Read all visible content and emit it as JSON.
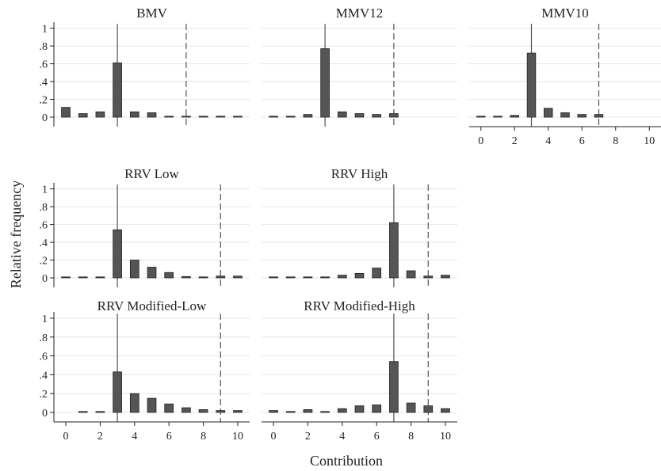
{
  "figure": {
    "ylabel": "Relative frequency",
    "xlabel": "Contribution",
    "colors": {
      "bar": "#555555",
      "bar_edge": "#222222",
      "grid": "#e6e6e6",
      "axis": "#222222",
      "marker_line": "#555555"
    }
  },
  "chart_data": [
    {
      "type": "bar",
      "title": "BMV",
      "x": [
        0,
        1,
        2,
        3,
        4,
        5,
        6,
        7,
        8,
        9,
        10
      ],
      "values": [
        0.11,
        0.04,
        0.06,
        0.61,
        0.06,
        0.05,
        0.01,
        0.01,
        0.005,
        0.002,
        0.002
      ],
      "solid_line_x": 3,
      "dashed_line_x": 7,
      "xlim": [
        -0.6,
        10.6
      ],
      "ylim": [
        0,
        1.05
      ],
      "yticks": [
        "0",
        ".2",
        ".4",
        ".6",
        ".8",
        "1"
      ],
      "xticks": [],
      "grid": true
    },
    {
      "type": "bar",
      "title": "MMV12",
      "x": [
        0,
        1,
        2,
        3,
        4,
        5,
        6,
        7,
        8,
        9,
        10
      ],
      "values": [
        0.003,
        0.005,
        0.03,
        0.77,
        0.06,
        0.04,
        0.03,
        0.04,
        0,
        0,
        0
      ],
      "solid_line_x": 3,
      "dashed_line_x": 7,
      "xlim": [
        -0.6,
        10.6
      ],
      "ylim": [
        0,
        1.05
      ],
      "yticks": [],
      "xticks": [],
      "grid": true
    },
    {
      "type": "bar",
      "title": "MMV10",
      "x": [
        0,
        1,
        2,
        3,
        4,
        5,
        6,
        7,
        8,
        9,
        10
      ],
      "values": [
        0.005,
        0.005,
        0.02,
        0.72,
        0.1,
        0.05,
        0.03,
        0.03,
        0,
        0,
        0
      ],
      "solid_line_x": 3,
      "dashed_line_x": 7,
      "xlim": [
        -0.6,
        10.6
      ],
      "ylim": [
        0,
        1.05
      ],
      "yticks": [],
      "xticks": [
        "0",
        "2",
        "4",
        "6",
        "8",
        "10"
      ],
      "grid": true
    },
    {
      "type": "bar",
      "title": "RRV Low",
      "x": [
        0,
        1,
        2,
        3,
        4,
        5,
        6,
        7,
        8,
        9,
        10
      ],
      "values": [
        0.003,
        0.003,
        0.005,
        0.54,
        0.2,
        0.12,
        0.06,
        0.015,
        0.01,
        0.02,
        0.02
      ],
      "solid_line_x": 3,
      "dashed_line_x": 9,
      "xlim": [
        -0.6,
        10.6
      ],
      "ylim": [
        0,
        1.05
      ],
      "yticks": [
        "0",
        ".2",
        ".4",
        ".6",
        ".8",
        "1"
      ],
      "xticks": [],
      "grid": true
    },
    {
      "type": "bar",
      "title": "RRV High",
      "x": [
        0,
        1,
        2,
        3,
        4,
        5,
        6,
        7,
        8,
        9,
        10
      ],
      "values": [
        0.01,
        0.01,
        0.005,
        0.01,
        0.03,
        0.05,
        0.11,
        0.62,
        0.08,
        0.02,
        0.03
      ],
      "solid_line_x": 7,
      "dashed_line_x": 9,
      "xlim": [
        -0.6,
        10.6
      ],
      "ylim": [
        0,
        1.05
      ],
      "yticks": [],
      "xticks": [],
      "grid": true
    },
    {
      "type": "bar",
      "title": "RRV Modified-Low",
      "x": [
        0,
        1,
        2,
        3,
        4,
        5,
        6,
        7,
        8,
        9,
        10
      ],
      "values": [
        0,
        0.003,
        0.01,
        0.43,
        0.2,
        0.15,
        0.09,
        0.05,
        0.03,
        0.02,
        0.02
      ],
      "solid_line_x": 3,
      "dashed_line_x": 9,
      "xlim": [
        -0.6,
        10.6
      ],
      "ylim": [
        0,
        1.05
      ],
      "yticks": [
        "0",
        ".2",
        ".4",
        ".6",
        ".8",
        "1"
      ],
      "xticks": [
        "0",
        "2",
        "4",
        "6",
        "8",
        "10"
      ],
      "grid": true
    },
    {
      "type": "bar",
      "title": "RRV Modified-High",
      "x": [
        0,
        1,
        2,
        3,
        4,
        5,
        6,
        7,
        8,
        9,
        10
      ],
      "values": [
        0.02,
        0.01,
        0.03,
        0.01,
        0.04,
        0.07,
        0.08,
        0.54,
        0.1,
        0.07,
        0.04
      ],
      "solid_line_x": 7,
      "dashed_line_x": 9,
      "xlim": [
        -0.6,
        10.6
      ],
      "ylim": [
        0,
        1.05
      ],
      "yticks": [],
      "xticks": [
        "0",
        "2",
        "4",
        "6",
        "8",
        "10"
      ],
      "grid": true
    }
  ]
}
